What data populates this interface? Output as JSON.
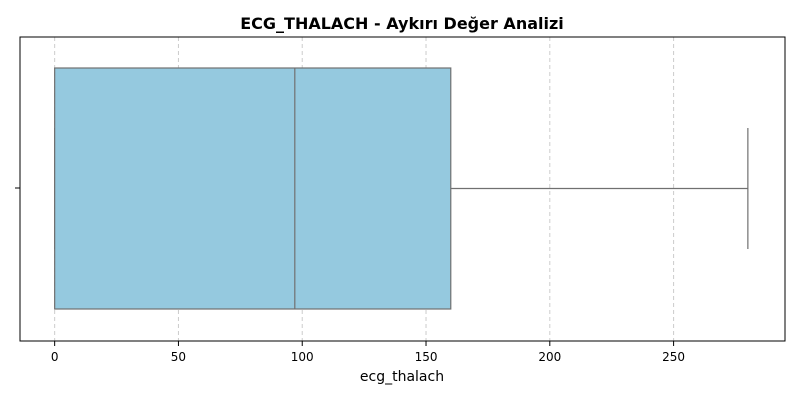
{
  "chart_data": {
    "type": "box",
    "title": "ECG_THALACH - Aykırı Değer Analizi",
    "xlabel": "ecg_thalach",
    "ylabel": "",
    "orientation": "horizontal",
    "xlim": [
      -14,
      295
    ],
    "x_ticks": [
      0,
      50,
      100,
      150,
      200,
      250
    ],
    "grid": {
      "x": true,
      "y": false,
      "style": "dashed"
    },
    "colors": {
      "box_fill": "#95c9df",
      "box_edge": "#707070",
      "grid": "#cccccc"
    },
    "box": {
      "whisker_low": 0,
      "q1": 0,
      "median": 97,
      "q3": 160,
      "whisker_high": 280
    }
  }
}
